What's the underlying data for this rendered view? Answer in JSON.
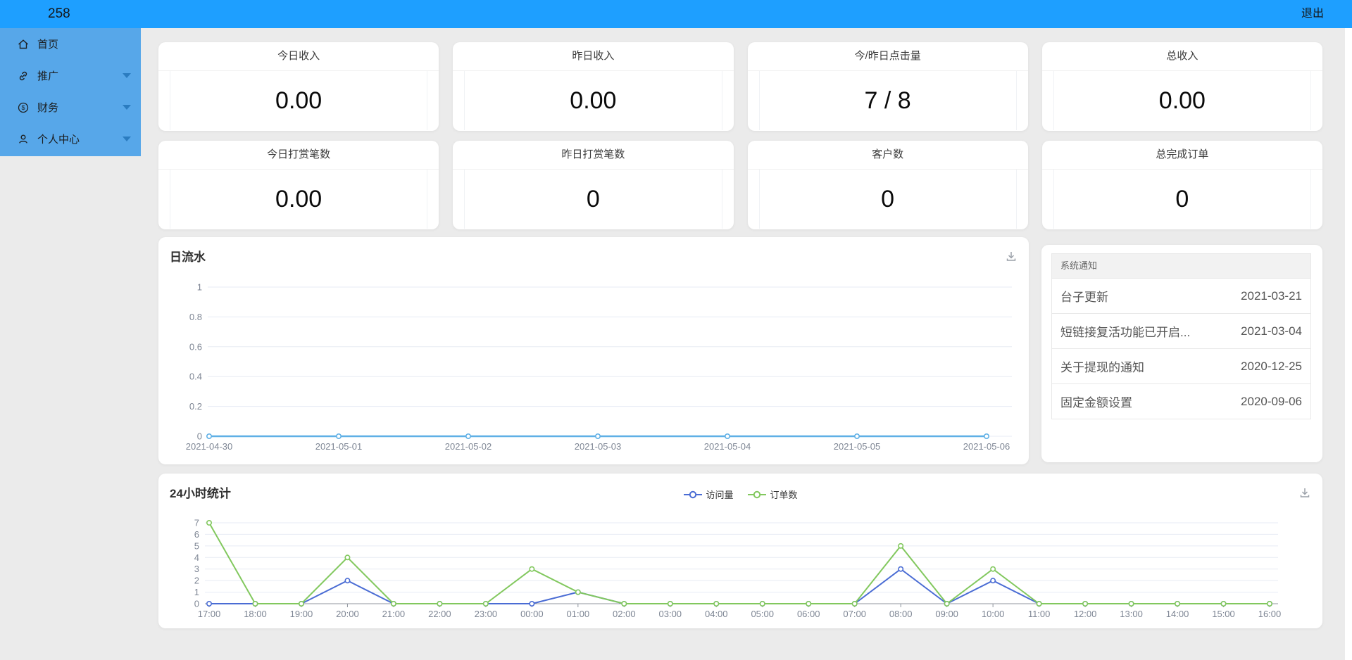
{
  "topbar": {
    "brand": "258",
    "logout_label": "退出",
    "bg_color": "#1e9fff"
  },
  "sidebar": {
    "bg_color": "#57a7e9",
    "items": [
      {
        "label": "首页",
        "icon": "home-icon",
        "has_submenu": false
      },
      {
        "label": "推广",
        "icon": "link-icon",
        "has_submenu": true
      },
      {
        "label": "财务",
        "icon": "money-icon",
        "has_submenu": true
      },
      {
        "label": "个人中心",
        "icon": "user-icon",
        "has_submenu": true
      }
    ]
  },
  "stat_cards": [
    {
      "label": "今日收入",
      "value": "0.00"
    },
    {
      "label": "昨日收入",
      "value": "0.00"
    },
    {
      "label": "今/昨日点击量",
      "value": "7 / 8"
    },
    {
      "label": "总收入",
      "value": "0.00"
    },
    {
      "label": "今日打赏笔数",
      "value": "0.00"
    },
    {
      "label": "昨日打赏笔数",
      "value": "0"
    },
    {
      "label": "客户数",
      "value": "0"
    },
    {
      "label": "总完成订单",
      "value": "0"
    }
  ],
  "notifications": {
    "title": "系统通知",
    "items": [
      {
        "title": "台子更新",
        "date": "2021-03-21"
      },
      {
        "title": "短链接复活功能已开启...",
        "date": "2021-03-04"
      },
      {
        "title": "关于提现的通知",
        "date": "2020-12-25"
      },
      {
        "title": "固定金额设置",
        "date": "2020-09-06"
      }
    ]
  },
  "icons": {
    "daily_panel_action": "download-icon",
    "hourly_panel_action": "download-icon"
  },
  "chart_data": [
    {
      "type": "line",
      "title": "日流水",
      "x": [
        "2021-04-30",
        "2021-05-01",
        "2021-05-02",
        "2021-05-03",
        "2021-05-04",
        "2021-05-05",
        "2021-05-06"
      ],
      "series": [
        {
          "name": "日流水",
          "color": "#5fb0e6",
          "values": [
            0,
            0,
            0,
            0,
            0,
            0,
            0
          ]
        }
      ],
      "xlabel": "",
      "ylabel": "",
      "ylim": [
        0,
        1
      ],
      "yticks": [
        0,
        0.2,
        0.4,
        0.6,
        0.8,
        1
      ],
      "grid": true,
      "legend_position": "none"
    },
    {
      "type": "line",
      "title": "24小时统计",
      "x": [
        "17:00",
        "18:00",
        "19:00",
        "20:00",
        "21:00",
        "22:00",
        "23:00",
        "00:00",
        "01:00",
        "02:00",
        "03:00",
        "04:00",
        "05:00",
        "06:00",
        "07:00",
        "08:00",
        "09:00",
        "10:00",
        "11:00",
        "12:00",
        "13:00",
        "14:00",
        "15:00",
        "16:00"
      ],
      "series": [
        {
          "name": "访问量",
          "color": "#4a6cd4",
          "values": [
            0,
            0,
            0,
            2,
            0,
            0,
            0,
            0,
            1,
            0,
            0,
            0,
            0,
            0,
            0,
            3,
            0,
            2,
            0,
            0,
            0,
            0,
            0,
            0
          ]
        },
        {
          "name": "订单数",
          "color": "#82c85e",
          "values": [
            7,
            0,
            0,
            4,
            0,
            0,
            0,
            3,
            1,
            0,
            0,
            0,
            0,
            0,
            0,
            5,
            0,
            3,
            0,
            0,
            0,
            0,
            0,
            0
          ]
        }
      ],
      "xlabel": "",
      "ylabel": "",
      "ylim": [
        0,
        7
      ],
      "yticks": [
        0,
        1,
        2,
        3,
        4,
        5,
        6,
        7
      ],
      "grid": true,
      "legend_position": "top-center"
    }
  ]
}
